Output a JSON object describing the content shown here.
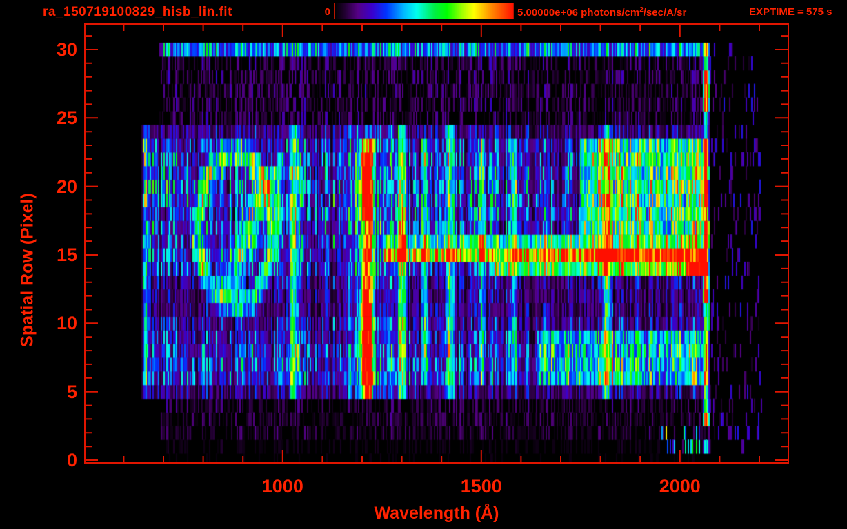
{
  "header": {
    "title": "ra_150719100829_hisb_lin.fit",
    "colorbar": {
      "min_label": "0",
      "max_value": "5.00000e+06",
      "units_pre": " photons/cm",
      "units_sup": "2",
      "units_post": "/sec/A/sr"
    },
    "exptime_label": "EXPTIME = 575 s"
  },
  "chart_data": {
    "type": "heatmap",
    "title": "ra_150719100829_hisb_lin.fit",
    "xlabel": "Wavelength (Å)",
    "ylabel": "Spatial Row (Pixel)",
    "x_range": [
      502,
      2273
    ],
    "y_range": [
      -0.2,
      31.86
    ],
    "x_ticks_major": [
      1000,
      1500,
      2000
    ],
    "x_minor_start": 600,
    "x_minor_end": 2200,
    "x_minor_step": 100,
    "y_ticks_major": [
      0,
      5,
      10,
      15,
      20,
      25,
      30
    ],
    "y_minor_start": 0,
    "y_minor_end": 31,
    "y_minor_step": 1,
    "colorbar": {
      "min": 0,
      "max": 5000000,
      "units": "photons/cm^2/sec/A/sr"
    },
    "exptime_s": 575,
    "accent_color": "#ff2200",
    "axis_color": "#e01500",
    "colormap": [
      [
        0.0,
        "#000000"
      ],
      [
        0.05,
        "#1c0028"
      ],
      [
        0.13,
        "#550085"
      ],
      [
        0.21,
        "#3a00cc"
      ],
      [
        0.29,
        "#0033ff"
      ],
      [
        0.39,
        "#00bbff"
      ],
      [
        0.46,
        "#00ffee"
      ],
      [
        0.56,
        "#00ee44"
      ],
      [
        0.63,
        "#00ff00"
      ],
      [
        0.72,
        "#aaff00"
      ],
      [
        0.78,
        "#ffff00"
      ],
      [
        0.88,
        "#ff8800"
      ],
      [
        1.0,
        "#ff0f00"
      ]
    ],
    "data_extent": {
      "wavelength": [
        645,
        2210
      ],
      "rows": [
        0,
        30
      ],
      "main_signal_rows": [
        5,
        24
      ],
      "data_right_edge": 2076
    },
    "row_base_intensity": [
      0.01,
      0.02,
      0.05,
      0.055,
      0.06,
      0.12,
      0.21,
      0.22,
      0.21,
      0.17,
      0.15,
      0.12,
      0.12,
      0.13,
      0.19,
      0.21,
      0.21,
      0.22,
      0.23,
      0.24,
      0.24,
      0.23,
      0.22,
      0.2,
      0.13,
      0.08,
      0.08,
      0.08,
      0.08,
      0.08,
      0.18
    ],
    "features": [
      {
        "name": "detector-left-edge",
        "shape": "vband",
        "lam": [
          645,
          663
        ],
        "rows": [
          4.5,
          24
        ],
        "amp": 0.3
      },
      {
        "name": "row30-top-band",
        "shape": "hband",
        "lam": [
          690,
          2075
        ],
        "rows": [
          29.5,
          30.5
        ],
        "amp": 0.15,
        "row_amps": [
          [
            29.5,
            30.5,
            1
          ]
        ]
      },
      {
        "name": "ring-feature",
        "shape": "ring",
        "center_lam": 880,
        "center_row": 16.8,
        "rx_lam": 95,
        "ry_rows": 5.5,
        "thickness_rows": 1.7,
        "amp": 0.42
      },
      {
        "name": "ring-slash",
        "shape": "seg",
        "from": [
          858,
          12.5
        ],
        "to": [
          968,
          20.5
        ],
        "width_rows": 1.2,
        "amp": 0.36
      },
      {
        "name": "column-1030",
        "shape": "vband",
        "lam": [
          1014,
          1044
        ],
        "rows": [
          5,
          24
        ],
        "amp": 0.34
      },
      {
        "name": "lya-halo",
        "shape": "rect",
        "lam": [
          1150,
          1275
        ],
        "rows": [
          5,
          24
        ],
        "amp": 0.09
      },
      {
        "name": "lyman-alpha-1216",
        "shape": "vband",
        "lam": [
          1192,
          1233
        ],
        "rows": [
          4.8,
          24
        ],
        "amp": 0.95,
        "row_amps": [
          [
            4.8,
            6,
            0.68
          ],
          [
            6,
            12,
            1.05
          ],
          [
            12,
            13.5,
            0.88
          ],
          [
            13.5,
            18,
            0.68
          ],
          [
            18,
            23,
            1.05
          ],
          [
            23,
            24,
            0.75
          ]
        ]
      },
      {
        "name": "column-1300",
        "shape": "vband",
        "lam": [
          1288,
          1316
        ],
        "rows": [
          5,
          24
        ],
        "amp": 0.48
      },
      {
        "name": "column-1356",
        "shape": "vband",
        "lam": [
          1348,
          1368
        ],
        "rows": [
          6,
          23
        ],
        "amp": 0.32
      },
      {
        "name": "column-1420",
        "shape": "vband",
        "lam": [
          1408,
          1436
        ],
        "rows": [
          5,
          24
        ],
        "amp": 0.36
      },
      {
        "name": "column-1500",
        "shape": "vband",
        "lam": [
          1494,
          1512
        ],
        "rows": [
          6,
          23
        ],
        "amp": 0.28
      },
      {
        "name": "column-1580",
        "shape": "vband",
        "lam": [
          1572,
          1592
        ],
        "rows": [
          6,
          23
        ],
        "amp": 0.26
      },
      {
        "name": "column-1815",
        "shape": "vband",
        "lam": [
          1800,
          1832
        ],
        "rows": [
          5,
          24
        ],
        "amp": 0.4
      },
      {
        "name": "bright-patch-upper-right",
        "shape": "rect",
        "lam": [
          1750,
          2072
        ],
        "rows": [
          16.5,
          23.5
        ],
        "amp": 0.33
      },
      {
        "name": "cyan-patch-lower-right",
        "shape": "rect",
        "lam": [
          1640,
          2072
        ],
        "rows": [
          6,
          9.5
        ],
        "amp": 0.24
      },
      {
        "name": "row-15-streak",
        "shape": "hband",
        "lam": [
          1255,
          2068
        ],
        "rows": [
          14.5,
          16.5
        ],
        "amp": 0.55,
        "row_amps": [
          [
            14.5,
            15.5,
            1
          ],
          [
            15.5,
            16.5,
            0.5
          ]
        ],
        "lam_amps": [
          [
            1255,
            0.5
          ],
          [
            1500,
            0.55
          ],
          [
            1700,
            0.68
          ],
          [
            1820,
            0.82
          ],
          [
            1900,
            0.88
          ],
          [
            1990,
            0.84
          ],
          [
            2068,
            0.78
          ]
        ]
      },
      {
        "name": "row-14-streak",
        "shape": "hband",
        "lam": [
          1520,
          2068
        ],
        "rows": [
          13.5,
          14.5
        ],
        "amp": 0.4,
        "row_amps": [
          [
            13.5,
            14.5,
            1
          ]
        ],
        "lam_amps": [
          [
            1520,
            0.34
          ],
          [
            1900,
            0.5
          ],
          [
            2010,
            0.62
          ],
          [
            2045,
            0.98
          ],
          [
            2068,
            0.95
          ]
        ]
      },
      {
        "name": "right-edge-emission-column",
        "shape": "vband",
        "lam": [
          2056,
          2076
        ],
        "rows": [
          0.8,
          30.3
        ],
        "amp": 0.92,
        "row_amps": [
          [
            0.8,
            2,
            0.45
          ],
          [
            2.4,
            3.8,
            1.05
          ],
          [
            3.8,
            5,
            0.6
          ],
          [
            5,
            12,
            0.5
          ],
          [
            12,
            14.8,
            1.05
          ],
          [
            14.8,
            16.2,
            0.85
          ],
          [
            16.2,
            24,
            0.55
          ],
          [
            24,
            25.4,
            0.4
          ],
          [
            25.4,
            29,
            1.05
          ],
          [
            29,
            30.3,
            0.55
          ]
        ]
      },
      {
        "name": "bottom-right-flecks",
        "shape": "rect",
        "lam": [
          1955,
          2055
        ],
        "rows": [
          0.5,
          2.6
        ],
        "amp": 0.28,
        "sparse": 0.55
      },
      {
        "name": "sparse-right-tail",
        "shape": "rect",
        "lam": [
          2076,
          2208
        ],
        "rows": [
          0.5,
          30
        ],
        "amp": 0.1,
        "sparse": 0.84
      }
    ]
  }
}
